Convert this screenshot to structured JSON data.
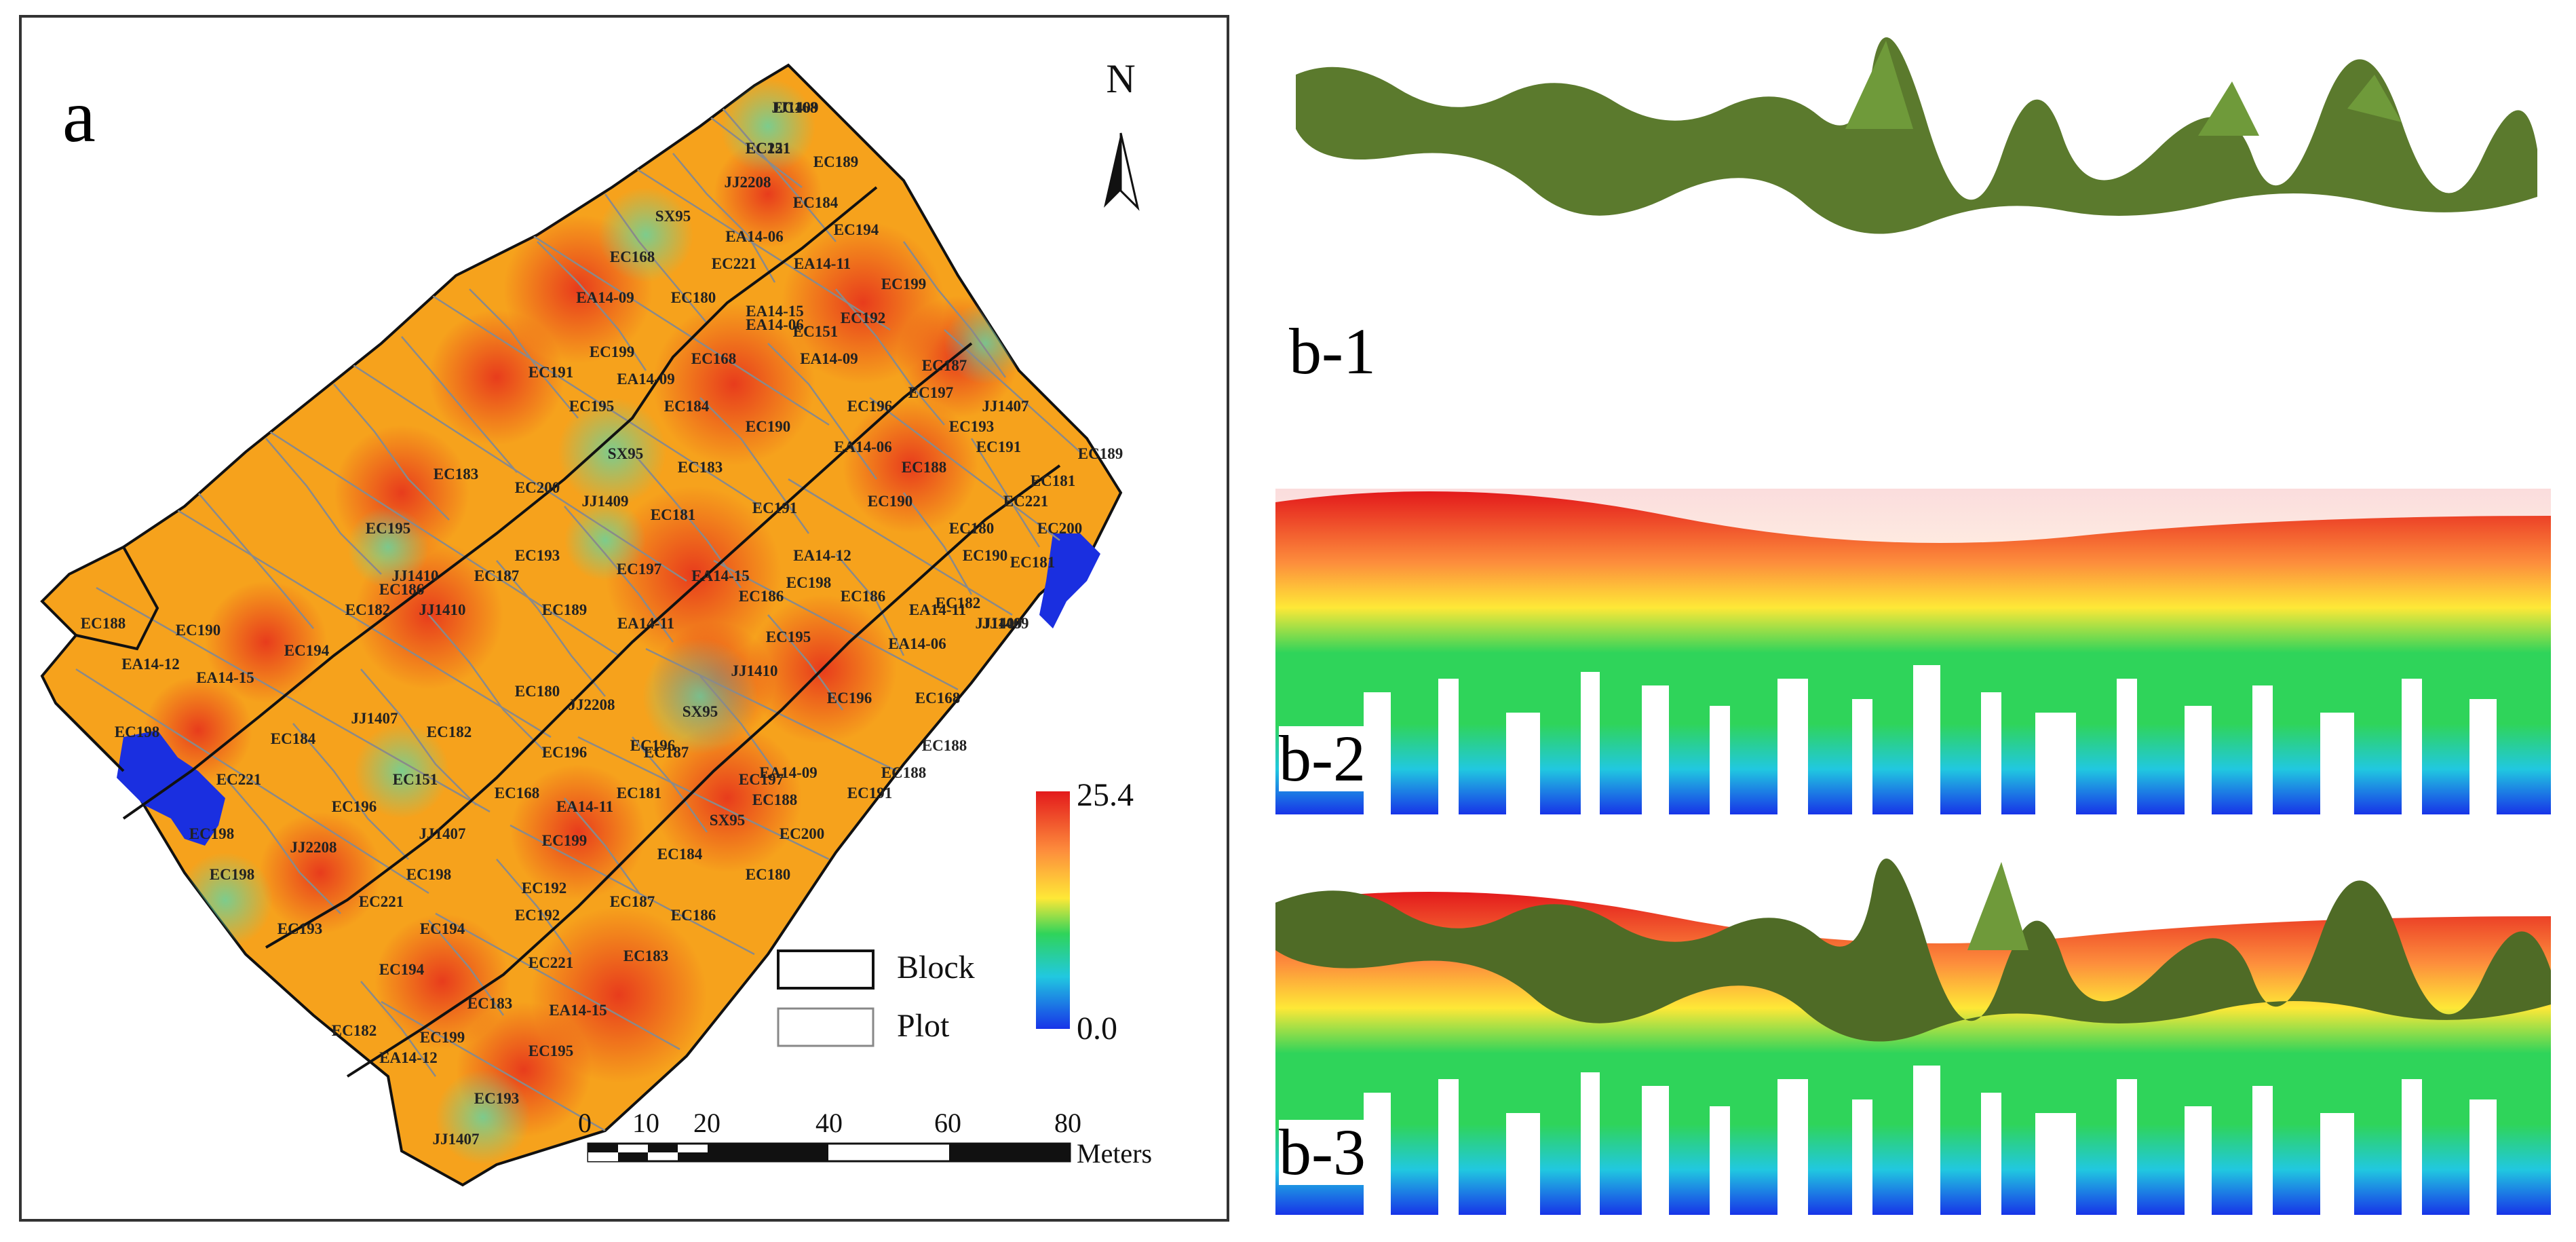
{
  "panel_a": {
    "label": "a",
    "north_label": "N",
    "plot_labels": [
      "JJ1409",
      "EC151",
      "EC189",
      "JJ2208",
      "EC184",
      "SX95",
      "EA14-06",
      "EC194",
      "EC168",
      "EC221",
      "EA14-11",
      "EC199",
      "EA14-09",
      "EC180",
      "EA14-15",
      "EC192",
      "EA14-06",
      "EC151",
      "EC199",
      "EC168",
      "EA14-09",
      "EC187",
      "EC191",
      "EA14-09",
      "EC197",
      "JJ1407",
      "EC195",
      "EC184",
      "EC196",
      "EC193",
      "EC190",
      "EA14-06",
      "EC191",
      "EC189",
      "SX95",
      "EC183",
      "EC188",
      "EC181",
      "EC200",
      "EC221",
      "EC183",
      "JJ1409",
      "EC181",
      "EC191",
      "EC190",
      "EC180",
      "EC200",
      "EC195",
      "EC193",
      "EA14-12",
      "EC190",
      "EC181",
      "EC198",
      "JJ1410",
      "EC187",
      "EC197",
      "EA14-15",
      "EC186",
      "EC182",
      "EA14-11",
      "JJ1409",
      "EC186",
      "JJ1410",
      "EC189",
      "EA14-11",
      "EC195",
      "EA14-06",
      "EC182",
      "EC188",
      "EC190",
      "EC194",
      "JJ1409",
      "EC180",
      "EA14-12",
      "EA14-15",
      "EC186",
      "EC196",
      "EC168",
      "JJ1410",
      "EC198",
      "EC184",
      "JJ1407",
      "EC182",
      "JJ2208",
      "SX95",
      "EC196",
      "EC188",
      "EC221",
      "EC151",
      "EC196",
      "EC187",
      "EA14-09",
      "EC197",
      "EC196",
      "EC168",
      "EC181",
      "EC191",
      "JJ1407",
      "EC199",
      "SX95",
      "EC200",
      "JJ2208",
      "EC198",
      "EC184",
      "EC180",
      "EC198",
      "EC192",
      "EC221",
      "EC187",
      "EC186",
      "EC192",
      "EC193",
      "EC194",
      "EC183",
      "EC194",
      "EC183",
      "EA14-15",
      "EC182",
      "EC199",
      "EC195",
      "EA14-12",
      "EC193",
      "JJ1407",
      "EC188",
      "EA14-11",
      "EC198",
      "EC221",
      "EC188"
    ],
    "extra_labels": [
      "EC168",
      "EC221"
    ],
    "legend": {
      "max_label": "25.4",
      "min_label": "0.0",
      "block_label": "Block",
      "plot_label": "Plot"
    },
    "scale_bar": {
      "ticks": [
        "0",
        "10",
        "20",
        "40",
        "60",
        "80"
      ],
      "unit": "Meters"
    }
  },
  "panel_b": {
    "b1_label": "b-1",
    "b2_label": "b-2",
    "b3_label": "b-3"
  },
  "colors": {
    "ramp_top": "#e31a1c",
    "ramp_upper": "#fd8d3c",
    "ramp_mid_high": "#fee837",
    "ramp_mid": "#2fd45a",
    "ramp_low": "#21c8e0",
    "ramp_bottom": "#1733e8",
    "block_line": "#111111",
    "plot_line": "#888888"
  },
  "chart_data": {
    "type": "heatmap",
    "title": "",
    "colorbar_range": [
      0.0,
      25.4
    ]
  }
}
